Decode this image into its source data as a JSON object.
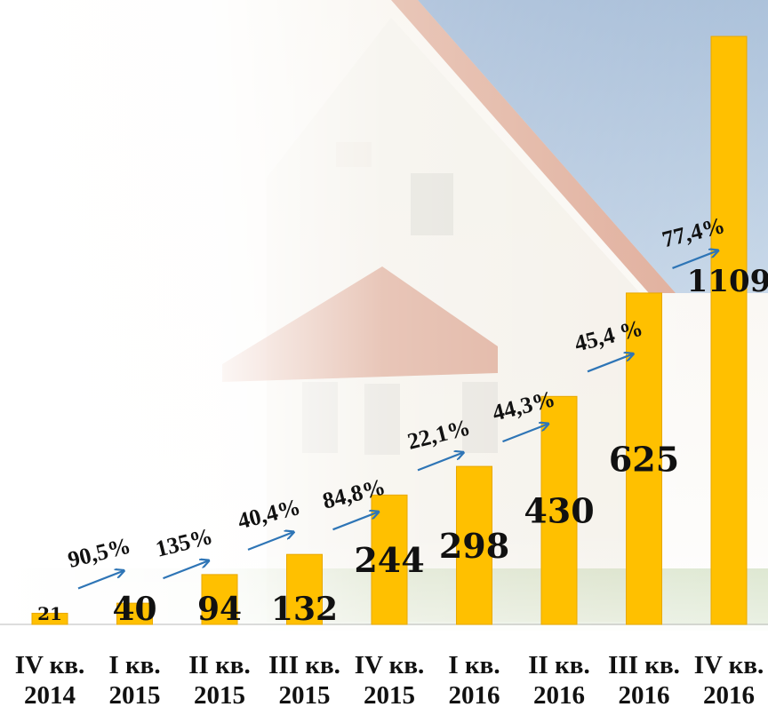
{
  "chart_data": {
    "type": "bar",
    "title": "",
    "xlabel": "",
    "ylabel": "",
    "categories": [
      [
        "IV кв.",
        "2014"
      ],
      [
        "I кв.",
        "2015"
      ],
      [
        "II кв.",
        "2015"
      ],
      [
        "III кв.",
        "2015"
      ],
      [
        "IV кв.",
        "2015"
      ],
      [
        "I кв.",
        "2016"
      ],
      [
        "II кв.",
        "2016"
      ],
      [
        "III кв.",
        "2016"
      ],
      [
        "IV кв.",
        "2016"
      ]
    ],
    "values": [
      21,
      40,
      94,
      132,
      244,
      298,
      430,
      625,
      1109
    ],
    "growth_labels": [
      "90,5%",
      "135%",
      "40,4%",
      "84,8%",
      "22,1%",
      "44,3%",
      "45,4 %",
      "77,4%"
    ],
    "ylim": [
      0,
      1109
    ],
    "grid": false,
    "legend": "none",
    "colors": {
      "bar": "#FFC000",
      "bar_edge": "#E8A800",
      "arrow": "#2E75B6",
      "text": "#111111",
      "background_roof": "#C96B4A",
      "background_panel": "#8FB3D9",
      "background_wall": "#F2EEE6",
      "background_grass": "#8FB36A"
    }
  }
}
